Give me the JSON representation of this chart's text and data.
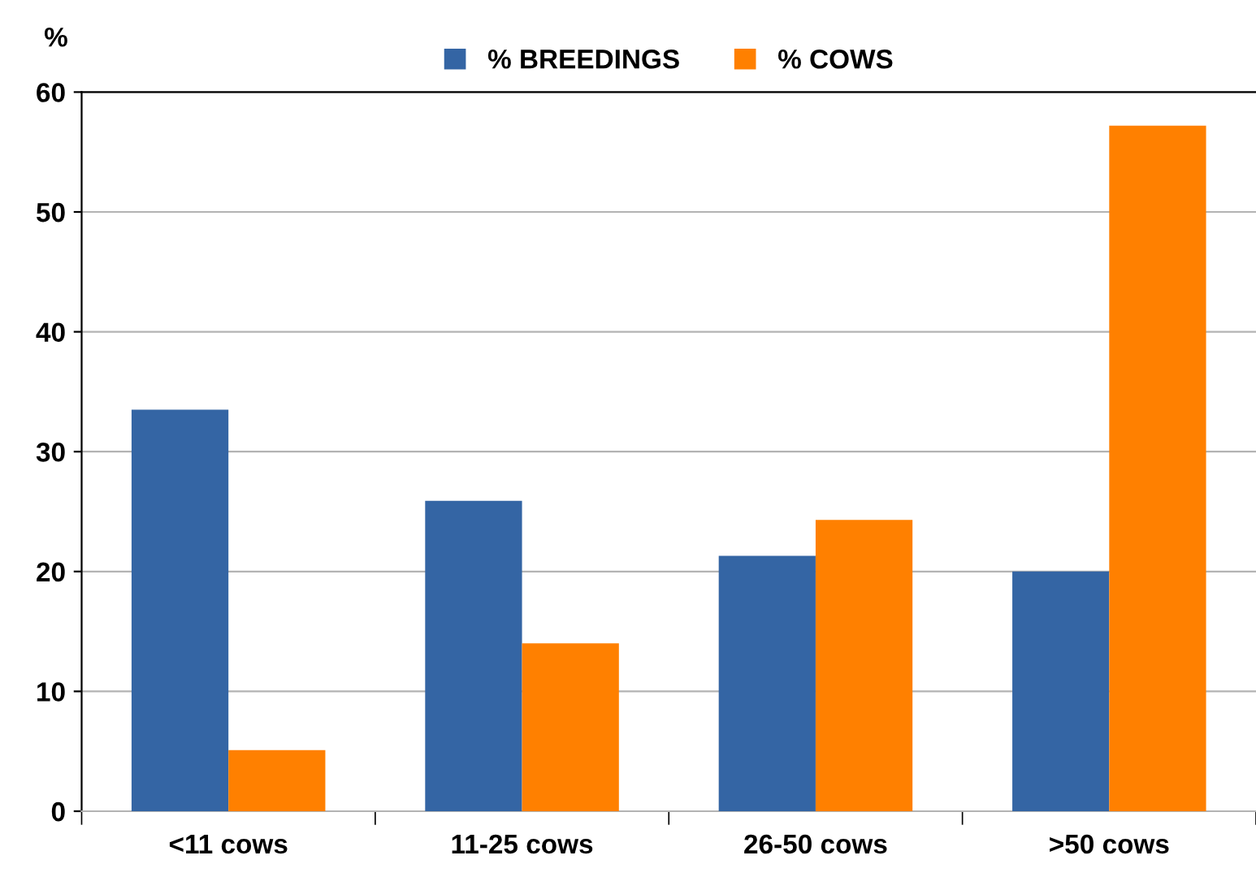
{
  "chart_data": {
    "type": "bar",
    "ylabel": "%",
    "categories": [
      "<11 cows",
      "11-25 cows",
      "26-50 cows",
      ">50 cows"
    ],
    "series": [
      {
        "name": "% BREEDINGS",
        "color": "#3465a4",
        "values": [
          33.5,
          25.9,
          21.3,
          20.0
        ]
      },
      {
        "name": "% COWS",
        "color": "#ff8000",
        "values": [
          5.1,
          14.0,
          24.3,
          57.2
        ]
      }
    ],
    "ylim": [
      0,
      60
    ],
    "yticks": [
      0,
      10,
      20,
      30,
      40,
      50,
      60
    ],
    "grid": "y",
    "legend": "top"
  }
}
